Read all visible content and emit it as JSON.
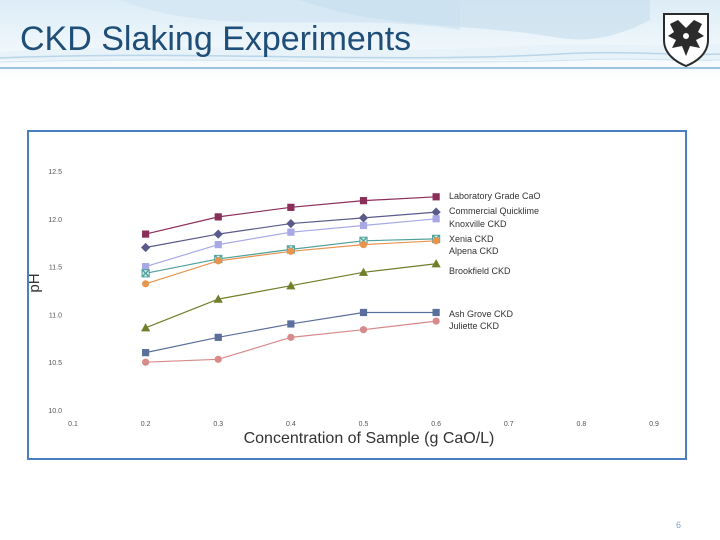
{
  "slide": {
    "title": "CKD Slaking Experiments",
    "page_number": "6"
  },
  "colors": {
    "title": "#1f4e79",
    "frame": "#4a7fc1",
    "header_bg": "#dcecf6",
    "logo": "#2b2b2b"
  },
  "icons": [
    "university-crest-icon"
  ],
  "chart_data": {
    "type": "line",
    "title": "",
    "xlabel": "Concentration of Sample (g CaO/L)",
    "ylabel": "pH",
    "xlim": [
      0.1,
      0.9
    ],
    "ylim": [
      10.0,
      12.5
    ],
    "x_ticks": [
      "0.1",
      "0.2",
      "0.3",
      "0.4",
      "0.5",
      "0.6",
      "0.7",
      "0.8",
      "0.9"
    ],
    "y_ticks": [
      "10.0",
      "10.5",
      "11.0",
      "11.5",
      "12.0",
      "12.5"
    ],
    "grid": false,
    "legend": "inline-right",
    "x": [
      0.2,
      0.3,
      0.4,
      0.5,
      0.6
    ],
    "series": [
      {
        "name": "Laboratory Grade CaO",
        "color": "#8b2e5a",
        "marker": "square",
        "values": [
          11.84,
          12.02,
          12.12,
          12.19,
          12.23
        ]
      },
      {
        "name": "Commercial Quicklime",
        "color": "#5a5a8a",
        "marker": "diamond",
        "values": [
          11.7,
          11.84,
          11.95,
          12.01,
          12.07
        ]
      },
      {
        "name": "Knoxville CKD",
        "color": "#a8a8e6",
        "marker": "square",
        "values": [
          11.5,
          11.73,
          11.86,
          11.93,
          12.0
        ]
      },
      {
        "name": "Xenia CKD",
        "color": "#4fa09a",
        "marker": "x",
        "values": [
          11.43,
          11.58,
          11.68,
          11.77,
          11.79
        ]
      },
      {
        "name": "Alpena CKD",
        "color": "#e8944f",
        "marker": "circle",
        "values": [
          11.32,
          11.56,
          11.66,
          11.73,
          11.77
        ]
      },
      {
        "name": "Brookfield CKD",
        "color": "#6f7f2a",
        "marker": "triangle",
        "values": [
          10.86,
          11.16,
          11.3,
          11.44,
          11.53
        ]
      },
      {
        "name": "Ash Grove CKD",
        "color": "#5b6f9c",
        "marker": "square",
        "values": [
          10.6,
          10.76,
          10.9,
          11.02,
          11.02
        ]
      },
      {
        "name": "Juliette CKD",
        "color": "#d88a8a",
        "marker": "circle",
        "values": [
          10.5,
          10.53,
          10.76,
          10.84,
          10.93
        ]
      }
    ]
  }
}
